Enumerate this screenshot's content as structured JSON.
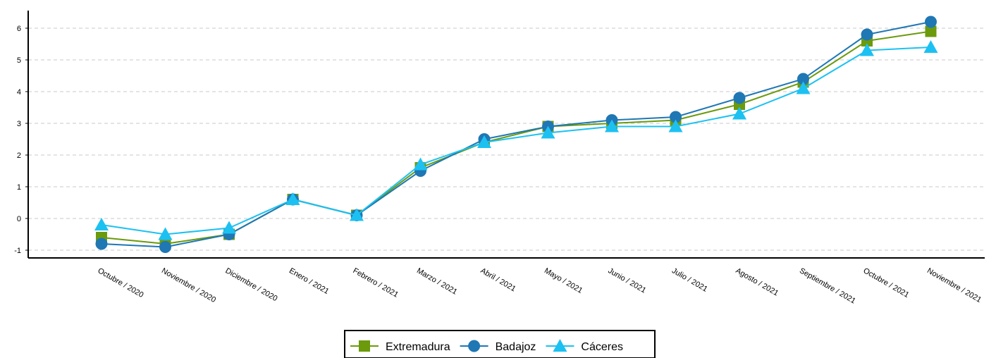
{
  "chart_data": {
    "type": "line",
    "title": "",
    "xlabel": "",
    "ylabel": "",
    "categories": [
      "Octubre / 2020",
      "Noviembre / 2020",
      "Diciembre / 2020",
      "Enero / 2021",
      "Febrero / 2021",
      "Marzo / 2021",
      "Abril / 2021",
      "Mayo / 2021",
      "Junio / 2021",
      "Julio / 2021",
      "Agosto / 2021",
      "Septiembre / 2021",
      "Octubre / 2021",
      "Noviembre / 2021"
    ],
    "ylim": [
      -1.25,
      6.6
    ],
    "yticks": [
      -1,
      0,
      1,
      2,
      3,
      4,
      5,
      6
    ],
    "grid": "horizontal dashed",
    "legend_position": "bottom-center",
    "series": [
      {
        "name": "Extremadura",
        "color": "#6b9a0c",
        "marker": "square",
        "values": [
          -0.6,
          -0.8,
          -0.5,
          0.6,
          0.1,
          1.6,
          2.4,
          2.9,
          3.0,
          3.1,
          3.6,
          4.3,
          5.6,
          5.9
        ]
      },
      {
        "name": "Badajoz",
        "color": "#1f77b4",
        "marker": "circle",
        "values": [
          -0.8,
          -0.9,
          -0.5,
          0.6,
          0.1,
          1.5,
          2.5,
          2.9,
          3.1,
          3.2,
          3.8,
          4.4,
          5.8,
          6.2
        ]
      },
      {
        "name": "Cáceres",
        "color": "#1cc1f2",
        "marker": "triangle",
        "values": [
          -0.2,
          -0.5,
          -0.3,
          0.6,
          0.1,
          1.7,
          2.4,
          2.7,
          2.9,
          2.9,
          3.3,
          4.1,
          5.3,
          5.4
        ]
      }
    ]
  }
}
